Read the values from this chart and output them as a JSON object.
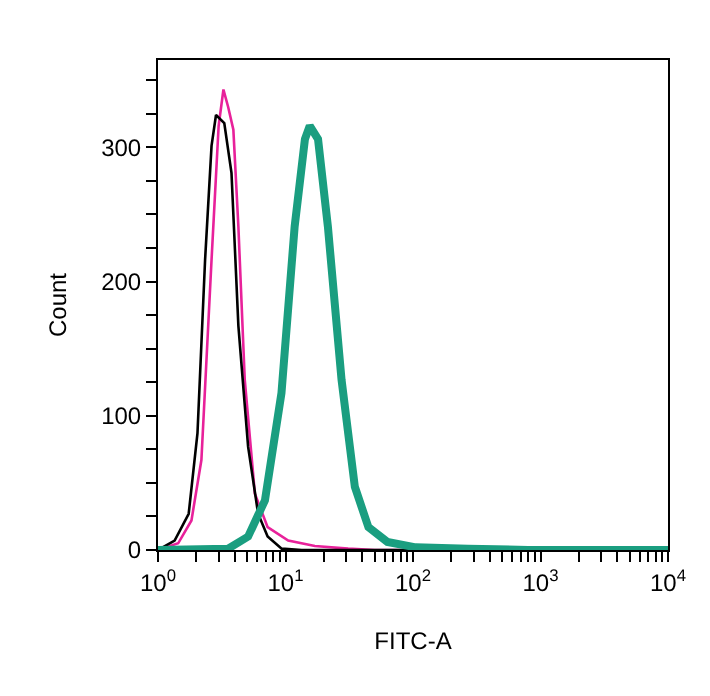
{
  "chart_data": {
    "type": "line",
    "xlabel": "FITC-A",
    "ylabel": "Count",
    "log": "x",
    "marker": "none",
    "line_style": "solid",
    "xlim": [
      1,
      10000
    ],
    "xticks": [
      {
        "value": 1,
        "label": "10$^{0}$"
      },
      {
        "value": 2,
        "label": null
      },
      {
        "value": 3,
        "label": null
      },
      {
        "value": 4,
        "label": null
      },
      {
        "value": 5,
        "label": null
      },
      {
        "value": 6,
        "label": null
      },
      {
        "value": 7,
        "label": null
      },
      {
        "value": 8,
        "label": null
      },
      {
        "value": 9,
        "label": null
      },
      {
        "value": 10,
        "label": "10$^{1}$"
      },
      {
        "value": 20,
        "label": null
      },
      {
        "value": 30,
        "label": null
      },
      {
        "value": 40,
        "label": null
      },
      {
        "value": 50,
        "label": null
      },
      {
        "value": 60,
        "label": null
      },
      {
        "value": 70,
        "label": null
      },
      {
        "value": 80,
        "label": null
      },
      {
        "value": 90,
        "label": null
      },
      {
        "value": 100,
        "label": "10$^{2}$"
      },
      {
        "value": 200,
        "label": null
      },
      {
        "value": 300,
        "label": null
      },
      {
        "value": 400,
        "label": null
      },
      {
        "value": 500,
        "label": null
      },
      {
        "value": 600,
        "label": null
      },
      {
        "value": 700,
        "label": null
      },
      {
        "value": 800,
        "label": null
      },
      {
        "value": 900,
        "label": null
      },
      {
        "value": 1000,
        "label": "10$^{3}$"
      },
      {
        "value": 2000,
        "label": null
      },
      {
        "value": 3000,
        "label": null
      },
      {
        "value": 4000,
        "label": null
      },
      {
        "value": 5000,
        "label": null
      },
      {
        "value": 6000,
        "label": null
      },
      {
        "value": 7000,
        "label": null
      },
      {
        "value": 8000,
        "label": null
      },
      {
        "value": 9000,
        "label": null
      },
      {
        "value": 10000,
        "label": "10$^{4}$"
      }
    ],
    "ylim": [
      0,
      365
    ],
    "yticks": [
      0,
      {
        "value": 25,
        "label": null
      },
      {
        "value": 50,
        "label": null
      },
      {
        "value": 75,
        "label": null
      },
      100,
      {
        "value": 125,
        "label": null
      },
      {
        "value": 150,
        "label": null
      },
      {
        "value": 175,
        "label": null
      },
      200,
      {
        "value": 225,
        "label": null
      },
      {
        "value": 250,
        "label": null
      },
      {
        "value": 275,
        "label": null
      },
      300,
      {
        "value": 325,
        "label": null
      },
      {
        "value": 350,
        "label": null
      }
    ],
    "series": [
      {
        "color": "#e8219a",
        "x": [
          1,
          1.44,
          1.83,
          2.19,
          2.63,
          2.99,
          3.26,
          3.55,
          3.9,
          4.27,
          4.79,
          5.75,
          7.24,
          10.5,
          17,
          31,
          50,
          10000
        ],
        "values": [
          0,
          5,
          22,
          67,
          216,
          316,
          343,
          330,
          313,
          241,
          127,
          42,
          17,
          7,
          3,
          1,
          0,
          0
        ]
      },
      {
        "color": "#000000",
        "x": [
          1,
          1.35,
          1.74,
          2.04,
          2.34,
          2.63,
          2.85,
          3.31,
          3.77,
          4.27,
          5.09,
          6.1,
          7.24,
          9.33,
          13.4,
          10000
        ],
        "values": [
          0,
          7,
          27,
          87,
          216,
          301,
          324,
          318,
          281,
          167,
          77,
          27,
          10,
          1,
          0,
          0
        ]
      },
      {
        "color": "#1a9e80",
        "x": [
          1,
          3.55,
          5.09,
          6.9,
          9.3,
          11.8,
          14.2,
          15.5,
          18,
          21.5,
          27.5,
          35,
          44.7,
          63,
          105,
          270,
          800,
          10000
        ],
        "values": [
          0,
          1,
          10,
          37,
          117,
          241,
          306,
          316,
          306,
          241,
          127,
          47,
          17,
          6,
          2,
          1,
          0,
          0
        ]
      }
    ]
  }
}
